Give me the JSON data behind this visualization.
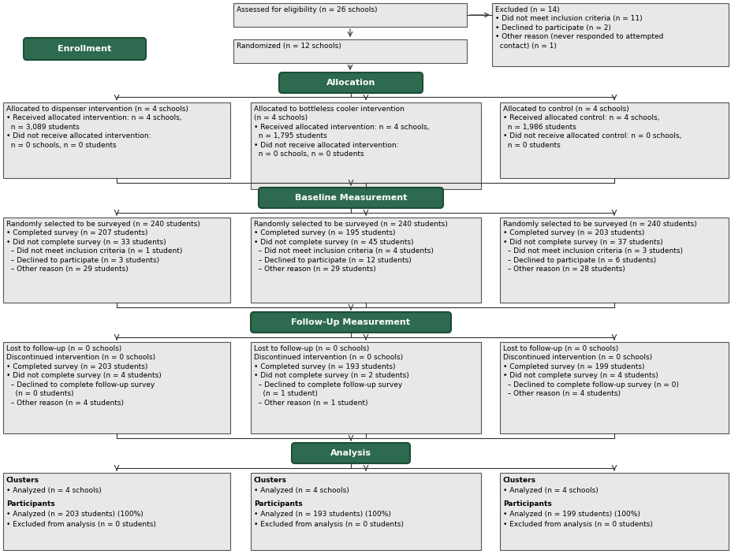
{
  "fig_width": 9.28,
  "fig_height": 7.03,
  "dpi": 100,
  "bg_color": "#ffffff",
  "box_bg": "#e8e8e8",
  "box_border": "#555555",
  "green_bg": "#2d6a4f",
  "green_text": "#ffffff",
  "dark_green_border": "#1e4d36",
  "arrow_color": "#333333",
  "font_size": 6.5,
  "green_font_size": 8.5,
  "eligibility_text": "Assessed for eligibility (n = 26 schools)",
  "excluded_text": "Excluded (n = 14)\n• Did not meet inclusion criteria (n = 11)\n• Declined to participate (n = 2)\n• Other reason (never responded to attempted\n  contact) (n = 1)",
  "enrollment_text": "Enrollment",
  "randomized_text": "Randomized (n = 12 schools)",
  "allocation_text": "Allocation",
  "alloc_disp_text": "Allocated to dispenser intervention (n = 4 schools)\n• Received allocated intervention: n = 4 schools,\n  n = 3,089 students\n• Did not receive allocated intervention:\n  n = 0 schools, n = 0 students",
  "alloc_bottle_text": "Allocated to bottleless cooler intervention\n(n = 4 schools)\n• Received allocated intervention: n = 4 schools,\n  n = 1,795 students\n• Did not receive allocated intervention:\n  n = 0 schools, n = 0 students",
  "alloc_control_text": "Allocated to control (n = 4 schools)\n• Received allocated control: n = 4 schools,\n  n = 1,986 students\n• Did not receive allocated control: n = 0 schools,\n  n = 0 students",
  "baseline_text": "Baseline Measurement",
  "base_disp_text": "Randomly selected to be surveyed (n = 240 students)\n• Completed survey (n = 207 students)\n• Did not complete survey (n = 33 students)\n  – Did not meet inclusion criteria (n = 1 student)\n  – Declined to participate (n = 3 students)\n  – Other reason (n = 29 students)",
  "base_bottle_text": "Randomly selected to be surveyed (n = 240 students)\n• Completed survey (n = 195 students)\n• Did not complete survey (n = 45 students)\n  – Did not meet inclusion criteria (n = 4 students)\n  – Declined to participate (n = 12 students)\n  – Other reason (n = 29 students)",
  "base_control_text": "Randomly selected to be surveyed (n = 240 students)\n• Completed survey (n = 203 students)\n• Did not complete survey (n = 37 students)\n  – Did not meet inclusion criteria (n = 3 students)\n  – Declined to participate (n = 6 students)\n  – Other reason (n = 28 students)",
  "followup_text": "Follow-Up Measurement",
  "fu_disp_text": "Lost to follow-up (n = 0 schools)\nDiscontinued intervention (n = 0 schools)\n• Completed survey (n = 203 students)\n• Did not complete survey (n = 4 students)\n  – Declined to complete follow-up survey\n    (n = 0 students)\n  – Other reason (n = 4 students)",
  "fu_bottle_text": "Lost to follow-up (n = 0 schools)\nDiscontinued intervention (n = 0 schools)\n• Completed survey (n = 193 students)\n• Did not complete survey (n = 2 students)\n  – Declined to complete follow-up survey\n    (n = 1 student)\n  – Other reason (n = 1 student)",
  "fu_control_text": "Lost to follow-up (n = 0 schools)\nDiscontinued intervention (n = 0 schools)\n• Completed survey (n = 199 students)\n• Did not complete survey (n = 4 students)\n  – Declined to complete follow-up survey (n = 0)\n  – Other reason (n = 4 students)",
  "analysis_text": "Analysis",
  "an_disp_bold1": "Clusters",
  "an_disp_norm1": "• Analyzed (n = 4 schools)",
  "an_disp_bold2": "Participants",
  "an_disp_norm2": "• Analyzed (n = 203 students) (100%)\n• Excluded from analysis (n = 0 students)",
  "an_bottle_bold1": "Clusters",
  "an_bottle_norm1": "• Analyzed (n = 4 schools)",
  "an_bottle_bold2": "Participants",
  "an_bottle_norm2": "• Analyzed (n = 193 students) (100%)\n• Excluded from analysis (n = 0 students)",
  "an_control_bold1": "Clusters",
  "an_control_norm1": "• Analyzed (n = 4 schools)",
  "an_control_bold2": "Participants",
  "an_control_norm2": "• Analyzed (n = 199 students) (100%)\n• Excluded from analysis (n = 0 students)"
}
